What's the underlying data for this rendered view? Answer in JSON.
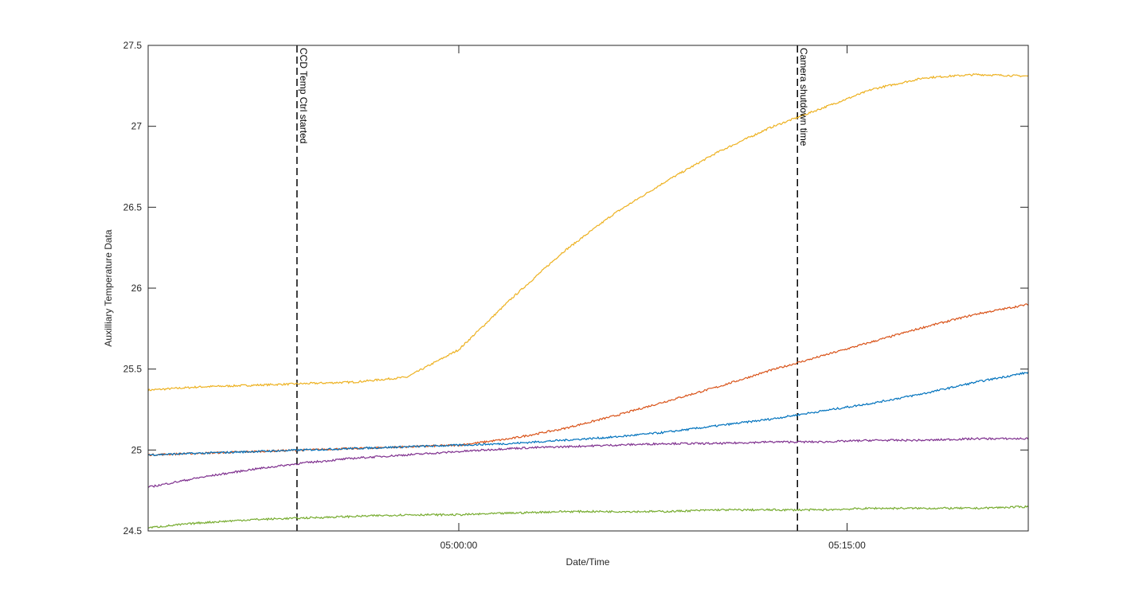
{
  "chart_data": {
    "type": "line",
    "title": "",
    "xlabel": "Date/Time",
    "ylabel": "Auxilliary Temperature Data",
    "x_unit": "time (hh:mm:ss)",
    "xlim": [
      "04:48:00",
      "05:22:00"
    ],
    "ylim": [
      24.5,
      27.5
    ],
    "yticks": [
      24.5,
      25,
      25.5,
      26,
      26.5,
      27,
      27.5
    ],
    "ytick_labels": [
      "24.5",
      "25",
      "25.5",
      "26",
      "26.5",
      "27",
      "27.5"
    ],
    "xticks": [
      "05:00:00",
      "05:15:00"
    ],
    "grid": false,
    "legend": "none",
    "annotations": [
      {
        "x": "04:53:45",
        "label": "CCD Temp Ctrl started",
        "style": "dashed",
        "color": "#000000"
      },
      {
        "x": "05:13:05",
        "label": "Camera shutdown time",
        "style": "dashed",
        "color": "#000000"
      }
    ],
    "x": [
      "04:48:00",
      "04:50:00",
      "04:52:00",
      "04:54:00",
      "04:56:00",
      "04:58:00",
      "05:00:00",
      "05:02:00",
      "05:04:00",
      "05:06:00",
      "05:08:00",
      "05:10:00",
      "05:12:00",
      "05:14:00",
      "05:16:00",
      "05:18:00",
      "05:20:00",
      "05:22:00"
    ],
    "series": [
      {
        "color": "#EDB120",
        "values": [
          25.37,
          25.39,
          25.4,
          25.41,
          25.42,
          25.45,
          25.62,
          25.93,
          26.22,
          26.46,
          26.66,
          26.84,
          26.99,
          27.11,
          27.23,
          27.3,
          27.32,
          27.31
        ]
      },
      {
        "color": "#D95319",
        "values": [
          24.97,
          24.98,
          24.99,
          25.0,
          25.01,
          25.02,
          25.03,
          25.07,
          25.13,
          25.21,
          25.3,
          25.39,
          25.49,
          25.58,
          25.67,
          25.76,
          25.84,
          25.9
        ]
      },
      {
        "color": "#0072BD",
        "values": [
          24.97,
          24.98,
          24.99,
          25.0,
          25.01,
          25.02,
          25.03,
          25.04,
          25.06,
          25.08,
          25.11,
          25.15,
          25.19,
          25.24,
          25.29,
          25.35,
          25.42,
          25.48
        ]
      },
      {
        "color": "#7E2F8E",
        "values": [
          24.77,
          24.83,
          24.88,
          24.92,
          24.95,
          24.97,
          24.99,
          25.01,
          25.02,
          25.03,
          25.04,
          25.04,
          25.05,
          25.05,
          25.06,
          25.06,
          25.07,
          25.07
        ]
      },
      {
        "color": "#77AC30",
        "values": [
          24.52,
          24.55,
          24.57,
          24.58,
          24.59,
          24.6,
          24.6,
          24.61,
          24.62,
          24.62,
          24.62,
          24.63,
          24.63,
          24.63,
          24.64,
          24.64,
          24.64,
          24.65
        ]
      }
    ]
  }
}
